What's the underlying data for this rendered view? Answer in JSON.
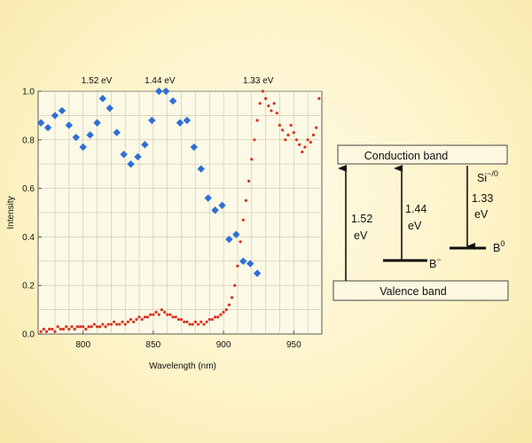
{
  "chart_data": {
    "type": "scatter",
    "xlabel": "Wavelength (nm)",
    "ylabel": "Intensity",
    "xlim": [
      768,
      970
    ],
    "ylim": [
      0,
      1.0
    ],
    "x_ticks": [
      800,
      850,
      900,
      950
    ],
    "y_ticks": [
      0.0,
      0.2,
      0.4,
      0.6,
      0.8,
      1.0
    ],
    "x_tick_labels": [
      "800",
      "850",
      "900",
      "950"
    ],
    "y_tick_labels": [
      "0.0",
      "0.2",
      "0.4",
      "0.6",
      "0.8",
      "1.0"
    ],
    "grid": true,
    "annotations": [
      {
        "text": "1.52 eV",
        "x": 816
      },
      {
        "text": "1.44 eV",
        "x": 861
      },
      {
        "text": "1.33 eV",
        "x": 931
      }
    ],
    "series": [
      {
        "color": "#2f6fd6",
        "marker": "diamond",
        "x": [
          770,
          775,
          780,
          785,
          790,
          795,
          800,
          805,
          810,
          814,
          819,
          824,
          829,
          834,
          839,
          844,
          849,
          854,
          859,
          864,
          869,
          874,
          879,
          884,
          889,
          894,
          899,
          904,
          909,
          914,
          919,
          924
        ],
        "y": [
          0.87,
          0.85,
          0.9,
          0.92,
          0.86,
          0.81,
          0.77,
          0.82,
          0.87,
          0.97,
          0.93,
          0.83,
          0.74,
          0.7,
          0.73,
          0.78,
          0.88,
          1.0,
          1.0,
          0.96,
          0.87,
          0.88,
          0.77,
          0.68,
          0.56,
          0.51,
          0.53,
          0.39,
          0.41,
          0.3,
          0.29,
          0.25
        ]
      },
      {
        "color": "#d8321c",
        "marker": "dot",
        "x": [
          770,
          772,
          774,
          776,
          778,
          780,
          782,
          784,
          786,
          788,
          790,
          792,
          794,
          796,
          798,
          800,
          802,
          804,
          806,
          808,
          810,
          812,
          814,
          816,
          818,
          820,
          822,
          824,
          826,
          828,
          830,
          832,
          834,
          836,
          838,
          840,
          842,
          844,
          846,
          848,
          850,
          852,
          854,
          856,
          858,
          860,
          862,
          864,
          866,
          868,
          870,
          872,
          874,
          876,
          878,
          880,
          882,
          884,
          886,
          888,
          890,
          892,
          894,
          896,
          898,
          900,
          902,
          904,
          906,
          908,
          910,
          912,
          914,
          916,
          918,
          920,
          922,
          924,
          926,
          928,
          930,
          932,
          934,
          936,
          938,
          940,
          942,
          944,
          946,
          948,
          950,
          952,
          954,
          956,
          958,
          960,
          962,
          964,
          966,
          968
        ],
        "y": [
          0.01,
          0.02,
          0.01,
          0.02,
          0.02,
          0.01,
          0.03,
          0.02,
          0.02,
          0.03,
          0.02,
          0.03,
          0.02,
          0.03,
          0.03,
          0.03,
          0.02,
          0.03,
          0.03,
          0.04,
          0.03,
          0.03,
          0.04,
          0.03,
          0.04,
          0.04,
          0.05,
          0.04,
          0.04,
          0.05,
          0.04,
          0.05,
          0.06,
          0.05,
          0.06,
          0.07,
          0.06,
          0.07,
          0.07,
          0.08,
          0.08,
          0.09,
          0.08,
          0.1,
          0.09,
          0.08,
          0.08,
          0.07,
          0.07,
          0.06,
          0.06,
          0.05,
          0.05,
          0.04,
          0.04,
          0.05,
          0.04,
          0.05,
          0.04,
          0.05,
          0.06,
          0.06,
          0.07,
          0.07,
          0.08,
          0.09,
          0.1,
          0.12,
          0.15,
          0.2,
          0.28,
          0.38,
          0.47,
          0.55,
          0.63,
          0.72,
          0.8,
          0.88,
          0.95,
          1.0,
          0.97,
          0.94,
          0.92,
          0.95,
          0.91,
          0.86,
          0.84,
          0.8,
          0.82,
          0.86,
          0.83,
          0.8,
          0.78,
          0.75,
          0.77,
          0.8,
          0.79,
          0.82,
          0.85,
          0.97
        ]
      }
    ]
  },
  "diagram": {
    "conduction_label": "Conduction band",
    "valence_label": "Valence band",
    "si_label": "Si",
    "si_sup": "−/0",
    "b_minus_label": "B",
    "b_minus_sup": "−",
    "b_zero_label": "B",
    "b_zero_sup": "0",
    "transitions": [
      {
        "line1": "1.52",
        "line2": "eV"
      },
      {
        "line1": "1.44",
        "line2": "eV"
      },
      {
        "line1": "1.33",
        "line2": "eV"
      }
    ]
  }
}
